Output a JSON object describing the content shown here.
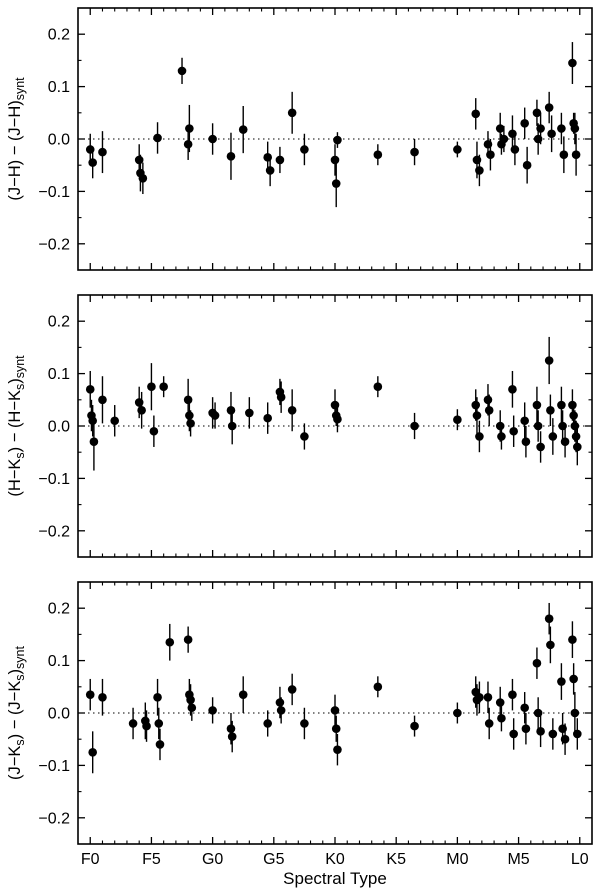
{
  "figure": {
    "title": "",
    "xlabel": "Spectral Type",
    "background": "#ffffff",
    "ink_color": "#000000",
    "x_tick_labels": [
      "F0",
      "F5",
      "G0",
      "G5",
      "K0",
      "K5",
      "M0",
      "M5",
      "L0"
    ],
    "y_tick_labels": [
      "−0.2",
      "−0.1",
      "0.0",
      "0.1",
      "0.2"
    ],
    "point_format": "each point is [x, y, err] where x is spectral type on numeric scale F0=0, F5=5, G0=10, G5=15, K0=20, K5=25, M0=30, M5=35, L0=40"
  },
  "chart_data": [
    {
      "type": "scatter",
      "panel": 1,
      "ylabel_text": "(J−H) − (J−H)synt",
      "ylabel_parts": [
        {
          "t": "(J−H) − (J−H)"
        },
        {
          "t": "synt",
          "sub": true
        }
      ],
      "x_axis": {
        "range": [
          -1,
          41
        ],
        "tick_values": [
          0,
          5,
          10,
          15,
          20,
          25,
          30,
          35,
          40
        ],
        "tick_labels": [
          "F0",
          "F5",
          "G0",
          "G5",
          "K0",
          "K5",
          "M0",
          "M5",
          "L0"
        ],
        "minor_step": 1
      },
      "y_axis": {
        "range": [
          -0.25,
          0.25
        ],
        "tick_values": [
          -0.2,
          -0.1,
          0,
          0.1,
          0.2
        ],
        "tick_labels": [
          "−0.2",
          "−0.1",
          "0.0",
          "0.1",
          "0.2"
        ],
        "minor_step": 0.05
      },
      "zero_line": {
        "y": 0,
        "style": "dotted"
      },
      "points": [
        [
          0.0,
          -0.02,
          0.03
        ],
        [
          0.2,
          -0.045,
          0.03
        ],
        [
          1.0,
          -0.025,
          0.04
        ],
        [
          4.0,
          -0.04,
          0.03
        ],
        [
          4.1,
          -0.065,
          0.035
        ],
        [
          4.3,
          -0.075,
          0.03
        ],
        [
          5.5,
          0.002,
          0.03
        ],
        [
          7.5,
          0.13,
          0.025
        ],
        [
          8.0,
          -0.01,
          0.03
        ],
        [
          8.1,
          0.02,
          0.045
        ],
        [
          10.0,
          0.0,
          0.03
        ],
        [
          11.5,
          -0.033,
          0.045
        ],
        [
          12.5,
          0.018,
          0.045
        ],
        [
          14.5,
          -0.035,
          0.03
        ],
        [
          14.7,
          -0.06,
          0.03
        ],
        [
          15.5,
          -0.04,
          0.025
        ],
        [
          16.5,
          0.05,
          0.04
        ],
        [
          17.5,
          -0.02,
          0.03
        ],
        [
          20.0,
          -0.04,
          0.03
        ],
        [
          20.1,
          -0.085,
          0.045
        ],
        [
          20.2,
          -0.002,
          0.015
        ],
        [
          23.5,
          -0.03,
          0.02
        ],
        [
          26.5,
          -0.025,
          0.025
        ],
        [
          30.0,
          -0.02,
          0.015
        ],
        [
          31.5,
          0.048,
          0.03
        ],
        [
          31.6,
          -0.04,
          0.035
        ],
        [
          31.8,
          -0.06,
          0.03
        ],
        [
          32.5,
          -0.01,
          0.025
        ],
        [
          32.7,
          -0.03,
          0.03
        ],
        [
          33.5,
          0.02,
          0.03
        ],
        [
          33.6,
          -0.01,
          0.02
        ],
        [
          33.8,
          0.0,
          0.025
        ],
        [
          34.5,
          0.01,
          0.035
        ],
        [
          34.7,
          -0.02,
          0.03
        ],
        [
          35.5,
          0.03,
          0.03
        ],
        [
          35.7,
          -0.05,
          0.035
        ],
        [
          36.5,
          0.05,
          0.025
        ],
        [
          36.6,
          0.0,
          0.03
        ],
        [
          36.8,
          0.02,
          0.03
        ],
        [
          37.5,
          0.06,
          0.03
        ],
        [
          37.7,
          0.01,
          0.035
        ],
        [
          38.5,
          0.02,
          0.03
        ],
        [
          38.7,
          -0.03,
          0.035
        ],
        [
          39.4,
          0.145,
          0.04
        ],
        [
          39.5,
          0.03,
          0.02
        ],
        [
          39.6,
          0.02,
          0.03
        ],
        [
          39.7,
          -0.03,
          0.04
        ]
      ]
    },
    {
      "type": "scatter",
      "panel": 2,
      "ylabel_text": "(H−Ks) − (H−Ks)synt",
      "ylabel_parts": [
        {
          "t": "(H−K"
        },
        {
          "t": "s",
          "sub": true
        },
        {
          "t": ") − (H−K"
        },
        {
          "t": "s",
          "sub": true
        },
        {
          "t": ")"
        },
        {
          "t": "synt",
          "sub": true
        }
      ],
      "x_axis": {
        "range": [
          -1,
          41
        ],
        "tick_values": [
          0,
          5,
          10,
          15,
          20,
          25,
          30,
          35,
          40
        ],
        "tick_labels": [
          "F0",
          "F5",
          "G0",
          "G5",
          "K0",
          "K5",
          "M0",
          "M5",
          "L0"
        ],
        "minor_step": 1
      },
      "y_axis": {
        "range": [
          -0.25,
          0.25
        ],
        "tick_values": [
          -0.2,
          -0.1,
          0,
          0.1,
          0.2
        ],
        "tick_labels": [
          "−0.2",
          "−0.1",
          "0.0",
          "0.1",
          "0.2"
        ],
        "minor_step": 0.05
      },
      "zero_line": {
        "y": 0,
        "style": "dotted"
      },
      "points": [
        [
          0.0,
          0.07,
          0.035
        ],
        [
          0.1,
          0.02,
          0.03
        ],
        [
          0.2,
          0.01,
          0.03
        ],
        [
          0.3,
          -0.03,
          0.055
        ],
        [
          1.0,
          0.05,
          0.045
        ],
        [
          2.0,
          0.01,
          0.03
        ],
        [
          4.0,
          0.045,
          0.03
        ],
        [
          4.2,
          0.03,
          0.035
        ],
        [
          5.0,
          0.075,
          0.045
        ],
        [
          5.2,
          -0.01,
          0.03
        ],
        [
          6.0,
          0.075,
          0.02
        ],
        [
          8.0,
          0.05,
          0.04
        ],
        [
          8.1,
          0.02,
          0.03
        ],
        [
          8.2,
          0.005,
          0.025
        ],
        [
          10.0,
          0.025,
          0.03
        ],
        [
          10.2,
          0.02,
          0.025
        ],
        [
          11.5,
          0.03,
          0.035
        ],
        [
          11.6,
          0.0,
          0.035
        ],
        [
          13.0,
          0.025,
          0.03
        ],
        [
          14.5,
          0.015,
          0.03
        ],
        [
          15.5,
          0.065,
          0.025
        ],
        [
          15.6,
          0.055,
          0.03
        ],
        [
          16.5,
          0.03,
          0.04
        ],
        [
          17.5,
          -0.02,
          0.025
        ],
        [
          20.0,
          0.04,
          0.03
        ],
        [
          20.1,
          0.02,
          0.02
        ],
        [
          20.2,
          0.013,
          0.025
        ],
        [
          23.5,
          0.075,
          0.02
        ],
        [
          26.5,
          0.0,
          0.025
        ],
        [
          30.0,
          0.012,
          0.02
        ],
        [
          31.5,
          0.04,
          0.03
        ],
        [
          31.6,
          0.02,
          0.035
        ],
        [
          31.8,
          -0.02,
          0.03
        ],
        [
          32.5,
          0.05,
          0.03
        ],
        [
          32.6,
          0.03,
          0.03
        ],
        [
          33.5,
          0.0,
          0.03
        ],
        [
          33.6,
          -0.02,
          0.025
        ],
        [
          34.5,
          0.07,
          0.035
        ],
        [
          34.6,
          -0.01,
          0.03
        ],
        [
          35.5,
          0.01,
          0.035
        ],
        [
          35.6,
          -0.03,
          0.03
        ],
        [
          36.5,
          0.04,
          0.035
        ],
        [
          36.6,
          0.0,
          0.03
        ],
        [
          36.8,
          -0.04,
          0.03
        ],
        [
          37.5,
          0.125,
          0.045
        ],
        [
          37.6,
          0.03,
          0.03
        ],
        [
          37.8,
          -0.02,
          0.035
        ],
        [
          38.5,
          0.04,
          0.035
        ],
        [
          38.6,
          0.0,
          0.03
        ],
        [
          38.8,
          -0.03,
          0.03
        ],
        [
          39.4,
          0.04,
          0.03
        ],
        [
          39.5,
          0.02,
          0.025
        ],
        [
          39.6,
          0.0,
          0.03
        ],
        [
          39.7,
          -0.02,
          0.03
        ],
        [
          39.8,
          -0.04,
          0.035
        ]
      ]
    },
    {
      "type": "scatter",
      "panel": 3,
      "ylabel_text": "(J−Ks) − (J−Ks)synt",
      "ylabel_parts": [
        {
          "t": "(J−K"
        },
        {
          "t": "s",
          "sub": true
        },
        {
          "t": ") − (J−K"
        },
        {
          "t": "s",
          "sub": true
        },
        {
          "t": ")"
        },
        {
          "t": "synt",
          "sub": true
        }
      ],
      "x_axis": {
        "range": [
          -1,
          41
        ],
        "tick_values": [
          0,
          5,
          10,
          15,
          20,
          25,
          30,
          35,
          40
        ],
        "tick_labels": [
          "F0",
          "F5",
          "G0",
          "G5",
          "K0",
          "K5",
          "M0",
          "M5",
          "L0"
        ],
        "minor_step": 1,
        "show_labels": true
      },
      "y_axis": {
        "range": [
          -0.25,
          0.25
        ],
        "tick_values": [
          -0.2,
          -0.1,
          0,
          0.1,
          0.2
        ],
        "tick_labels": [
          "−0.2",
          "−0.1",
          "0.0",
          "0.1",
          "0.2"
        ],
        "minor_step": 0.05
      },
      "zero_line": {
        "y": 0,
        "style": "dotted"
      },
      "points": [
        [
          0.0,
          0.035,
          0.03
        ],
        [
          0.2,
          -0.075,
          0.04
        ],
        [
          1.0,
          0.03,
          0.035
        ],
        [
          3.5,
          -0.02,
          0.03
        ],
        [
          4.5,
          -0.015,
          0.035
        ],
        [
          4.6,
          -0.025,
          0.03
        ],
        [
          5.5,
          0.03,
          0.035
        ],
        [
          5.6,
          -0.02,
          0.03
        ],
        [
          5.7,
          -0.06,
          0.03
        ],
        [
          6.5,
          0.135,
          0.035
        ],
        [
          8.0,
          0.14,
          0.025
        ],
        [
          8.1,
          0.035,
          0.03
        ],
        [
          8.2,
          0.025,
          0.03
        ],
        [
          8.3,
          0.01,
          0.025
        ],
        [
          10.0,
          0.005,
          0.025
        ],
        [
          11.5,
          -0.03,
          0.03
        ],
        [
          11.6,
          -0.045,
          0.03
        ],
        [
          12.5,
          0.035,
          0.035
        ],
        [
          14.5,
          -0.02,
          0.025
        ],
        [
          15.5,
          0.02,
          0.03
        ],
        [
          15.6,
          0.005,
          0.025
        ],
        [
          16.5,
          0.045,
          0.03
        ],
        [
          17.5,
          -0.02,
          0.03
        ],
        [
          20.0,
          0.005,
          0.03
        ],
        [
          20.1,
          -0.03,
          0.025
        ],
        [
          20.2,
          -0.07,
          0.03
        ],
        [
          23.5,
          0.05,
          0.02
        ],
        [
          26.5,
          -0.025,
          0.02
        ],
        [
          30.0,
          0.0,
          0.02
        ],
        [
          31.5,
          0.04,
          0.03
        ],
        [
          31.6,
          0.025,
          0.03
        ],
        [
          31.8,
          0.03,
          0.03
        ],
        [
          32.5,
          0.03,
          0.03
        ],
        [
          32.6,
          -0.02,
          0.03
        ],
        [
          33.5,
          0.02,
          0.03
        ],
        [
          33.6,
          -0.01,
          0.025
        ],
        [
          34.5,
          0.035,
          0.03
        ],
        [
          34.6,
          -0.04,
          0.03
        ],
        [
          35.5,
          0.01,
          0.03
        ],
        [
          35.6,
          -0.03,
          0.03
        ],
        [
          36.5,
          0.095,
          0.03
        ],
        [
          36.6,
          0.0,
          0.03
        ],
        [
          36.8,
          -0.035,
          0.03
        ],
        [
          37.5,
          0.18,
          0.03
        ],
        [
          37.6,
          0.13,
          0.035
        ],
        [
          37.8,
          -0.04,
          0.03
        ],
        [
          38.5,
          0.06,
          0.035
        ],
        [
          38.6,
          -0.03,
          0.03
        ],
        [
          38.8,
          -0.05,
          0.03
        ],
        [
          39.4,
          0.14,
          0.035
        ],
        [
          39.5,
          0.065,
          0.03
        ],
        [
          39.6,
          0.0,
          0.04
        ],
        [
          39.8,
          -0.04,
          0.03
        ]
      ]
    }
  ]
}
